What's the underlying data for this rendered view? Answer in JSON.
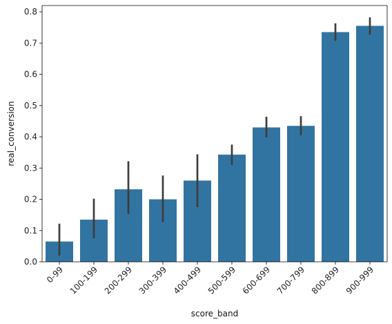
{
  "chart_data": {
    "type": "bar",
    "title": "",
    "xlabel": "score_band",
    "ylabel": "real_conversion",
    "categories": [
      "0-99",
      "100-199",
      "200-299",
      "300-399",
      "400-499",
      "500-599",
      "600-699",
      "700-799",
      "800-899",
      "900-999"
    ],
    "values": [
      0.065,
      0.135,
      0.232,
      0.2,
      0.26,
      0.343,
      0.43,
      0.435,
      0.735,
      0.755
    ],
    "error_low": [
      0.02,
      0.075,
      0.153,
      0.127,
      0.175,
      0.31,
      0.398,
      0.405,
      0.707,
      0.727
    ],
    "error_high": [
      0.122,
      0.202,
      0.322,
      0.276,
      0.344,
      0.375,
      0.464,
      0.466,
      0.763,
      0.782
    ],
    "ylim": [
      0,
      0.82
    ],
    "yticks": [
      "0.0",
      "0.1",
      "0.2",
      "0.3",
      "0.4",
      "0.5",
      "0.6",
      "0.7",
      "0.8"
    ],
    "grid": false,
    "colors": {
      "bar": "#3274a1",
      "error": "#3d3d3d",
      "axis": "#000000"
    }
  }
}
